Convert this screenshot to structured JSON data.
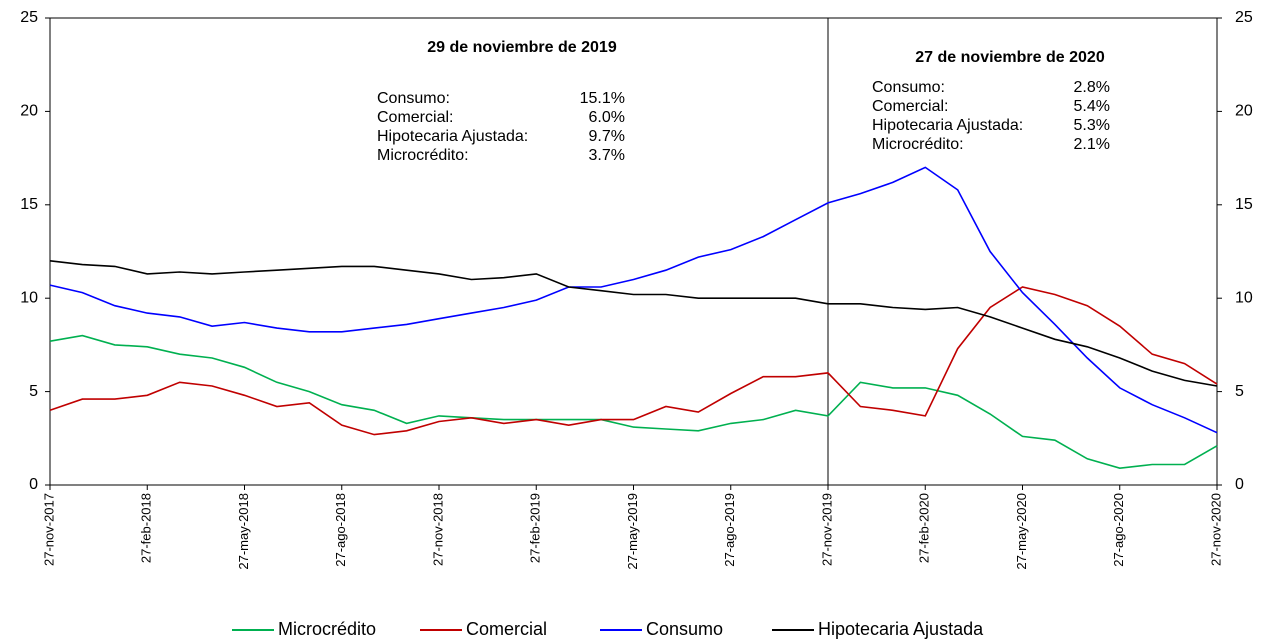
{
  "chart_data": {
    "type": "line",
    "categories": [
      "27-nov-2017",
      null,
      null,
      "27-feb-2018",
      null,
      null,
      "27-may-2018",
      null,
      null,
      "27-ago-2018",
      null,
      null,
      "27-nov-2018",
      null,
      null,
      "27-feb-2019",
      null,
      null,
      "27-may-2019",
      null,
      null,
      "27-ago-2019",
      null,
      null,
      "27-nov-2019",
      null,
      null,
      "27-feb-2020",
      null,
      null,
      "27-may-2020",
      null,
      null,
      "27-ago-2020",
      null,
      null,
      "27-nov-2020"
    ],
    "series": [
      {
        "name": "Microcrédito",
        "color": "#00b050",
        "values": [
          7.7,
          8.0,
          7.5,
          7.4,
          7.0,
          6.8,
          6.3,
          5.5,
          5.0,
          4.3,
          4.0,
          3.3,
          3.7,
          3.6,
          3.5,
          3.5,
          3.5,
          3.5,
          3.1,
          3.0,
          2.9,
          3.3,
          3.5,
          4.0,
          3.7,
          5.5,
          5.2,
          5.2,
          4.8,
          3.8,
          2.6,
          2.4,
          1.4,
          0.9,
          1.1,
          1.1,
          2.1
        ]
      },
      {
        "name": "Comercial",
        "color": "#c00000",
        "values": [
          4.0,
          4.6,
          4.6,
          4.8,
          5.5,
          5.3,
          4.8,
          4.2,
          4.4,
          3.2,
          2.7,
          2.9,
          3.4,
          3.6,
          3.3,
          3.5,
          3.2,
          3.5,
          3.5,
          4.2,
          3.9,
          4.9,
          5.8,
          5.8,
          6.0,
          4.2,
          4.0,
          3.7,
          7.3,
          9.5,
          10.6,
          10.2,
          9.6,
          8.5,
          7.0,
          6.5,
          5.4
        ]
      },
      {
        "name": "Consumo",
        "color": "#0000ff",
        "values": [
          10.7,
          10.3,
          9.6,
          9.2,
          9.0,
          8.5,
          8.7,
          8.4,
          8.2,
          8.2,
          8.4,
          8.6,
          8.9,
          9.2,
          9.5,
          9.9,
          10.6,
          10.6,
          11.0,
          11.5,
          12.2,
          12.6,
          13.3,
          14.2,
          15.1,
          15.6,
          16.2,
          17.0,
          15.8,
          12.5,
          10.3,
          8.6,
          6.8,
          5.2,
          4.3,
          3.6,
          2.8
        ]
      },
      {
        "name": "Hipotecaria Ajustada",
        "color": "#000000",
        "values": [
          12.0,
          11.8,
          11.7,
          11.3,
          11.4,
          11.3,
          11.4,
          11.5,
          11.6,
          11.7,
          11.7,
          11.5,
          11.3,
          11.0,
          11.1,
          11.3,
          10.6,
          10.4,
          10.2,
          10.2,
          10.0,
          10.0,
          10.0,
          10.0,
          9.7,
          9.7,
          9.5,
          9.4,
          9.5,
          9.0,
          8.4,
          7.8,
          7.4,
          6.8,
          6.1,
          5.6,
          5.3
        ]
      }
    ],
    "ylim": [
      0,
      25
    ],
    "yticks": [
      0,
      5,
      10,
      15,
      20,
      25
    ],
    "y2lim": [
      0,
      25
    ],
    "y2ticks": [
      0,
      5,
      10,
      15,
      20,
      25
    ],
    "vline": "27-nov-2019",
    "legend": "bottom",
    "annotations": [
      {
        "title": "29 de noviembre de 2019",
        "rows": [
          {
            "label": "Consumo:",
            "value": "15.1%"
          },
          {
            "label": "Comercial:",
            "value": "6.0%"
          },
          {
            "label": "Hipotecaria Ajustada:",
            "value": "9.7%"
          },
          {
            "label": "Microcrédito:",
            "value": "3.7%"
          }
        ]
      },
      {
        "title": "27 de noviembre de 2020",
        "rows": [
          {
            "label": "Consumo:",
            "value": "2.8%"
          },
          {
            "label": "Comercial:",
            "value": "5.4%"
          },
          {
            "label": "Hipotecaria Ajustada:",
            "value": "5.3%"
          },
          {
            "label": "Microcrédito:",
            "value": "2.1%"
          }
        ]
      }
    ]
  }
}
